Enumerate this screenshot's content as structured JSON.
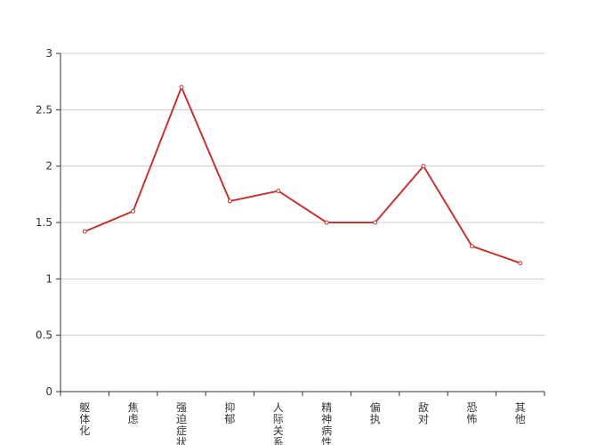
{
  "chart_data": {
    "type": "line",
    "categories": [
      "躯体化",
      "焦虑",
      "强迫症状",
      "抑郁",
      "人际关系",
      "精神病性",
      "偏执",
      "敌对",
      "恐怖",
      "其他"
    ],
    "series": [
      {
        "color": "#c23531",
        "values": [
          1.42,
          1.6,
          2.7,
          1.69,
          1.78,
          1.5,
          1.5,
          2.0,
          1.29,
          1.14
        ]
      }
    ],
    "ylim": [
      0,
      3
    ],
    "yticks": [
      0,
      0.5,
      1,
      1.5,
      2,
      2.5,
      3
    ],
    "grid": true
  }
}
